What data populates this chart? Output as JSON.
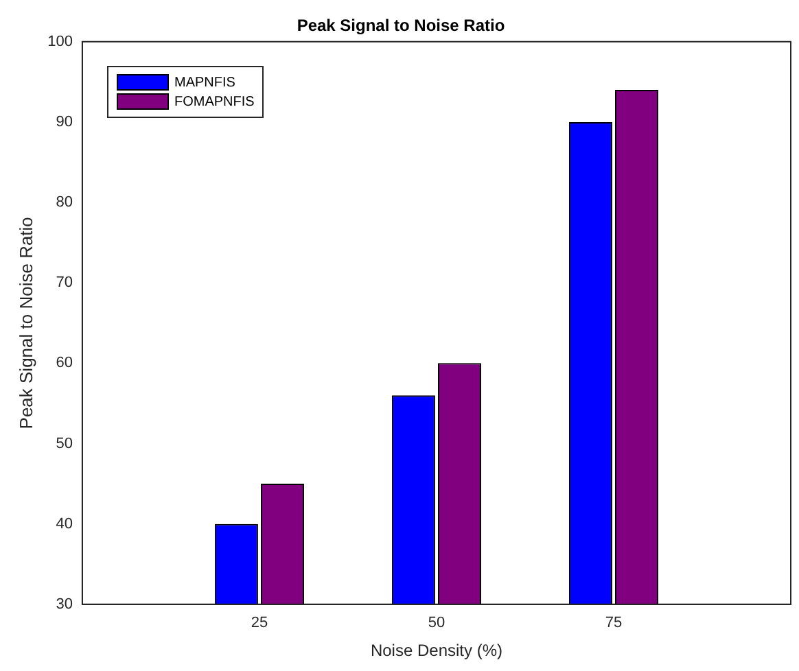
{
  "chart_data": {
    "type": "bar",
    "title": "Peak Signal to Noise Ratio",
    "xlabel": "Noise Density (%)",
    "ylabel": "Peak Signal to Noise Ratio",
    "x": [
      25,
      50,
      75
    ],
    "xlim": [
      0,
      100
    ],
    "xticks": [
      25,
      50,
      75
    ],
    "ylim": [
      30,
      100
    ],
    "yticks": [
      30,
      40,
      50,
      60,
      70,
      80,
      90,
      100
    ],
    "series": [
      {
        "name": "MAPNFIS",
        "color": "#0000ff",
        "values": [
          40,
          56,
          90
        ]
      },
      {
        "name": "FOMAPNFIS",
        "color": "#800080",
        "values": [
          45,
          60,
          94
        ]
      }
    ],
    "legend": "top left",
    "grid": false
  }
}
